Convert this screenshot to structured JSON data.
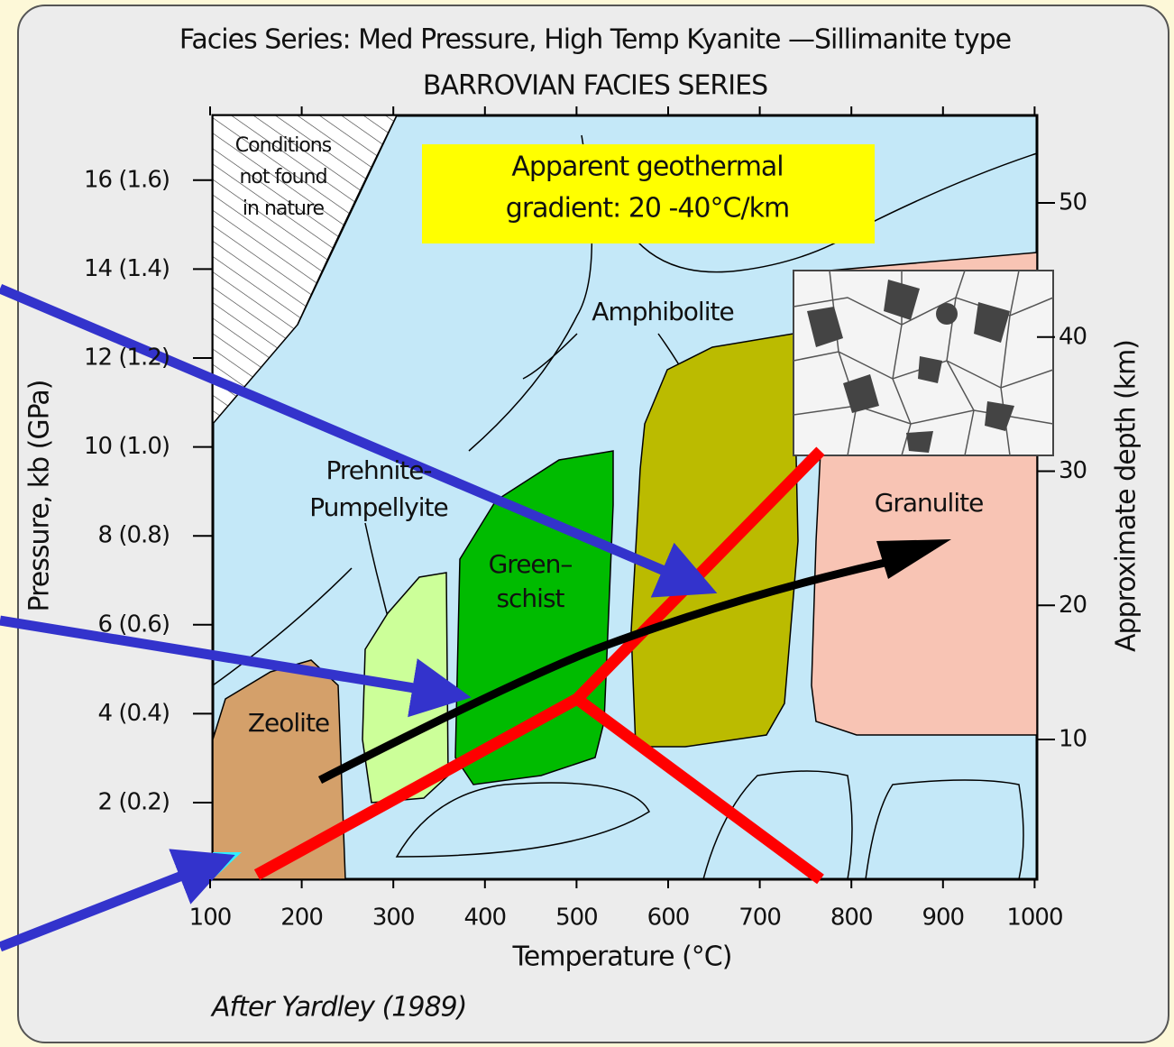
{
  "title": "Facies Series: Med Pressure, High Temp Kyanite —Sillimanite type",
  "subtitle": "BARROVIAN FACIES SERIES",
  "note": {
    "lines": [
      "Apparent geothermal",
      "gradient: 20 -40°C/km"
    ]
  },
  "x_axis": {
    "label": "Temperature (°C)",
    "ticks": [
      "100",
      "200",
      "300",
      "400",
      "500",
      "600",
      "700",
      "800",
      "900",
      "1000"
    ]
  },
  "y_axis": {
    "label": "Pressure, kb (GPa)",
    "ticks": [
      "2 (0.2)",
      "4 (0.4)",
      "6 (0.6)",
      "8 (0.8)",
      "10 (1.0)",
      "12 (1.2)",
      "14 (1.4)",
      "16 (1.6)"
    ]
  },
  "y2_axis": {
    "label": "Approximate depth (km)",
    "ticks": [
      "10",
      "20",
      "30",
      "40",
      "50"
    ]
  },
  "regions": [
    {
      "lines": [
        "Conditions",
        "not found",
        "in nature"
      ]
    },
    {
      "lines": [
        "Zeolite"
      ]
    },
    {
      "lines": [
        "Prehnite-",
        "Pumpellyite"
      ]
    },
    {
      "lines": [
        "Green–",
        "schist"
      ]
    },
    {
      "lines": [
        "Amphibolite"
      ]
    },
    {
      "lines": [
        "Granulite"
      ]
    }
  ],
  "credit": "After Yardley (1989)"
}
